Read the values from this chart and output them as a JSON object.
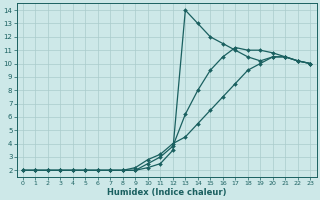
{
  "xlabel": "Humidex (Indice chaleur)",
  "bg_color": "#cde8e8",
  "grid_color": "#aacccc",
  "line_color": "#1a6060",
  "xlim": [
    -0.5,
    23.5
  ],
  "ylim": [
    1.5,
    14.5
  ],
  "yticks": [
    2,
    3,
    4,
    5,
    6,
    7,
    8,
    9,
    10,
    11,
    12,
    13,
    14
  ],
  "xticks": [
    0,
    1,
    2,
    3,
    4,
    5,
    6,
    7,
    8,
    9,
    10,
    11,
    12,
    13,
    14,
    15,
    16,
    17,
    18,
    19,
    20,
    21,
    22,
    23
  ],
  "curve1_x": [
    0,
    1,
    2,
    3,
    4,
    5,
    6,
    7,
    8,
    9,
    10,
    11,
    12,
    13,
    14,
    15,
    16,
    17,
    18,
    19,
    20,
    21,
    22,
    23
  ],
  "curve1_y": [
    2,
    2,
    2,
    2,
    2,
    2,
    2,
    2,
    2,
    2,
    2.2,
    2.5,
    3.5,
    14,
    13,
    12,
    11.5,
    11,
    10.5,
    10.2,
    10.5,
    10.5,
    10.2,
    10
  ],
  "curve2_x": [
    0,
    1,
    2,
    3,
    4,
    5,
    6,
    7,
    8,
    9,
    10,
    11,
    12,
    13,
    14,
    15,
    16,
    17,
    18,
    19,
    20,
    21,
    22,
    23
  ],
  "curve2_y": [
    2,
    2,
    2,
    2,
    2,
    2,
    2,
    2,
    2,
    2,
    2.5,
    3,
    3.8,
    6.2,
    8,
    9.5,
    10.5,
    11.2,
    11,
    11,
    10.8,
    10.5,
    10.2,
    10
  ],
  "curve3_x": [
    0,
    1,
    2,
    3,
    4,
    5,
    6,
    7,
    8,
    9,
    10,
    11,
    12,
    13,
    14,
    15,
    16,
    17,
    18,
    19,
    20,
    21,
    22,
    23
  ],
  "curve3_y": [
    2,
    2,
    2,
    2,
    2,
    2,
    2,
    2,
    2,
    2.2,
    2.8,
    3.2,
    4,
    4.5,
    5.5,
    6.5,
    7.5,
    8.5,
    9.5,
    10,
    10.5,
    10.5,
    10.2,
    10
  ]
}
